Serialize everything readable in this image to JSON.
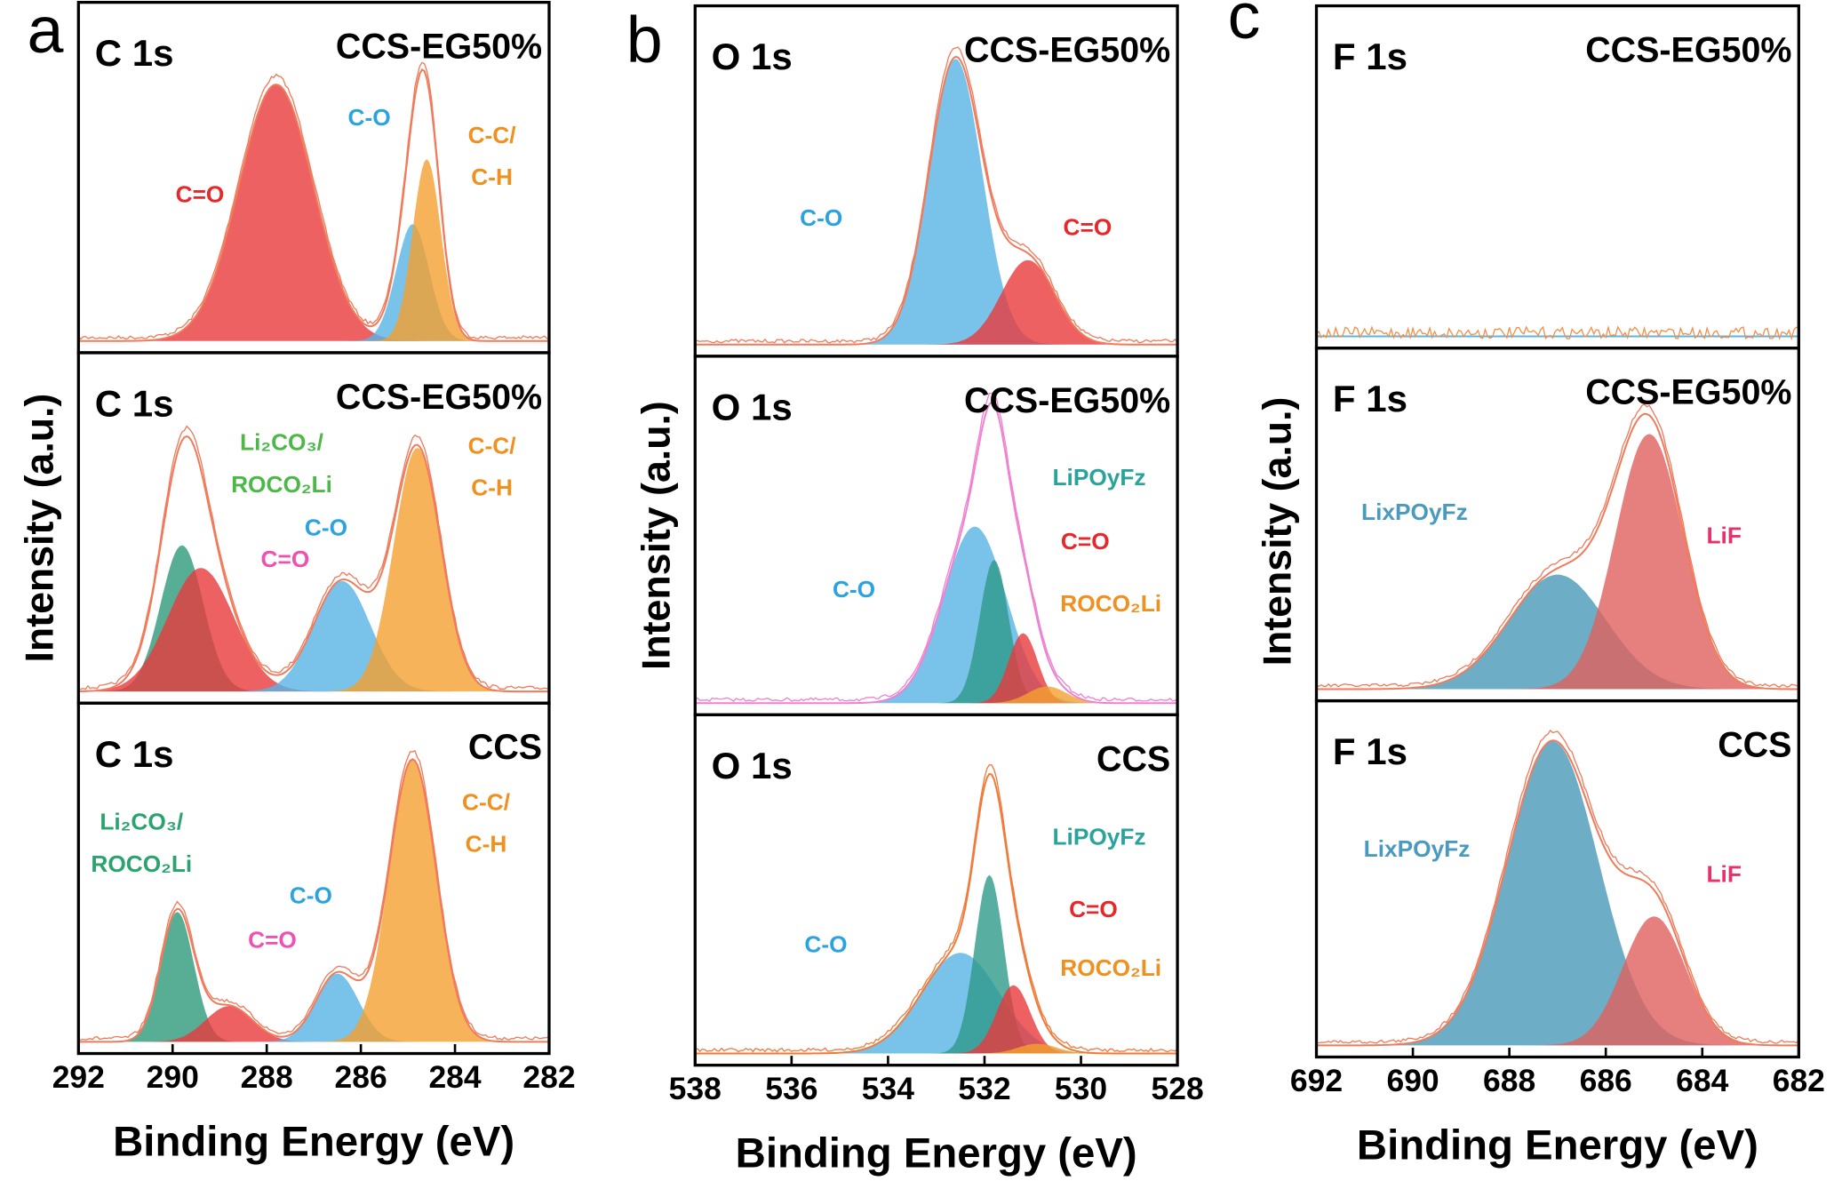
{
  "chart_data": [
    {
      "type": "area",
      "letter": "a",
      "xlabel": "Binding Energy (eV)",
      "ylabel": "Intensity (a.u.)",
      "xlim": [
        292,
        282
      ],
      "xticks": [
        292,
        290,
        288,
        286,
        284,
        282
      ],
      "subplots": [
        {
          "title": "C 1s",
          "sample": "CCS-EG50%",
          "envelope_color": "#f07a5a",
          "series": [
            {
              "name": "C=O",
              "color": "#e83a3c",
              "label_color": "#e8272a",
              "center": 287.8,
              "height": 0.79,
              "width": 0.79
            },
            {
              "name": "C-O",
              "color": "#58b4e6",
              "label_color": "#2aa3e0",
              "center": 284.9,
              "height": 0.36,
              "width": 0.35
            },
            {
              "name": "C-C/C-H",
              "color": "#f5a030",
              "label_color": "#f0901e",
              "center": 284.6,
              "height": 0.56,
              "width": 0.3
            }
          ]
        },
        {
          "title": "C 1s",
          "sample": "CCS-EG50%",
          "envelope_color": "#f07a5a",
          "series": [
            {
              "name": "Li₂CO₃/ROCO₂Li",
              "color": "#2e9a7a",
              "label_color": "#4cb848",
              "center": 289.8,
              "height": 0.45,
              "width": 0.45
            },
            {
              "name": "C=O",
              "color": "#e83a3c",
              "label_color": "#f050b0",
              "center": 289.4,
              "height": 0.38,
              "width": 0.7
            },
            {
              "name": "C-O",
              "color": "#58b4e6",
              "label_color": "#2aa3e0",
              "center": 286.4,
              "height": 0.34,
              "width": 0.6
            },
            {
              "name": "C-C/C-H",
              "color": "#f5a030",
              "label_color": "#f0901e",
              "center": 284.8,
              "height": 0.75,
              "width": 0.5
            }
          ]
        },
        {
          "title": "C 1s",
          "sample": "CCS",
          "envelope_color": "#f07a5a",
          "series": [
            {
              "name": "Li₂CO₃/ROCO₂Li",
              "color": "#2e9a7a",
              "label_color": "#2aa36f",
              "center": 289.9,
              "height": 0.4,
              "width": 0.35
            },
            {
              "name": "C=O",
              "color": "#e83a3c",
              "label_color": "#f050b0",
              "center": 288.8,
              "height": 0.11,
              "width": 0.5
            },
            {
              "name": "C-O",
              "color": "#58b4e6",
              "label_color": "#2aa3e0",
              "center": 286.5,
              "height": 0.21,
              "width": 0.45
            },
            {
              "name": "C-C/C-H",
              "color": "#f5a030",
              "label_color": "#f0901e",
              "center": 284.9,
              "height": 0.87,
              "width": 0.5
            }
          ]
        }
      ]
    },
    {
      "type": "area",
      "letter": "b",
      "xlabel": "Binding Energy (eV)",
      "ylabel": "Intensity (a.u.)",
      "xlim": [
        538,
        528
      ],
      "xticks": [
        538,
        536,
        534,
        532,
        530,
        528
      ],
      "subplots": [
        {
          "title": "O 1s",
          "sample": "CCS-EG50%",
          "envelope_color": "#f07a5a",
          "series": [
            {
              "name": "C-O",
              "color": "#58b4e6",
              "label_color": "#2aa3e0",
              "center": 532.6,
              "height": 0.88,
              "width": 0.55
            },
            {
              "name": "C=O",
              "color": "#e83a3c",
              "label_color": "#e8272a",
              "center": 531.1,
              "height": 0.26,
              "width": 0.55
            }
          ]
        },
        {
          "title": "O 1s",
          "sample": "CCS-EG50%",
          "envelope_color": "#f080d0",
          "series": [
            {
              "name": "C-O",
              "color": "#58b4e6",
              "label_color": "#2aa3e0",
              "center": 532.2,
              "height": 0.53,
              "width": 0.65
            },
            {
              "name": "LiPOyFz",
              "color": "#2e9a8a",
              "label_color": "#2aa39a",
              "center": 531.8,
              "height": 0.43,
              "width": 0.3
            },
            {
              "name": "C=O",
              "color": "#e83a3c",
              "label_color": "#e8272a",
              "center": 531.2,
              "height": 0.21,
              "width": 0.3
            },
            {
              "name": "ROCO₂Li",
              "color": "#f5a030",
              "label_color": "#f0901e",
              "center": 530.7,
              "height": 0.05,
              "width": 0.4
            }
          ]
        },
        {
          "title": "O 1s",
          "sample": "CCS",
          "envelope_color": "#f07a3a",
          "series": [
            {
              "name": "C-O",
              "color": "#58b4e6",
              "label_color": "#2aa3e0",
              "center": 532.5,
              "height": 0.31,
              "width": 0.8
            },
            {
              "name": "LiPOyFz",
              "color": "#2e9a8a",
              "label_color": "#2aa39a",
              "center": 531.9,
              "height": 0.55,
              "width": 0.3
            },
            {
              "name": "C=O",
              "color": "#e83a3c",
              "label_color": "#e8272a",
              "center": 531.4,
              "height": 0.21,
              "width": 0.35
            },
            {
              "name": "ROCO₂Li",
              "color": "#f5a030",
              "label_color": "#f0901e",
              "center": 530.9,
              "height": 0.03,
              "width": 0.4
            }
          ]
        }
      ]
    },
    {
      "type": "area",
      "letter": "c",
      "xlabel": "Binding Energy (eV)",
      "ylabel": "Intensity (a.u.)",
      "xlim": [
        692,
        682
      ],
      "xticks": [
        692,
        690,
        688,
        686,
        684,
        682
      ],
      "subplots": [
        {
          "title": "F 1s",
          "sample": "CCS-EG50%",
          "envelope_color": "#f0904a",
          "series": []
        },
        {
          "title": "F 1s",
          "sample": "CCS-EG50%",
          "envelope_color": "#f07a5a",
          "series": [
            {
              "name": "LixPOyFz",
              "color": "#4a98b8",
              "label_color": "#4a9ac0",
              "center": 687.0,
              "height": 0.35,
              "width": 1.0
            },
            {
              "name": "LiF",
              "color": "#e0605e",
              "label_color": "#e8306a",
              "center": 685.1,
              "height": 0.78,
              "width": 0.7
            }
          ]
        },
        {
          "title": "F 1s",
          "sample": "CCS",
          "envelope_color": "#f07a5a",
          "series": [
            {
              "name": "LixPOyFz",
              "color": "#4a98b8",
              "label_color": "#4a9ac0",
              "center": 687.1,
              "height": 0.92,
              "width": 0.95
            },
            {
              "name": "LiF",
              "color": "#e0605e",
              "label_color": "#e8306a",
              "center": 685.0,
              "height": 0.39,
              "width": 0.65
            }
          ]
        }
      ]
    }
  ]
}
